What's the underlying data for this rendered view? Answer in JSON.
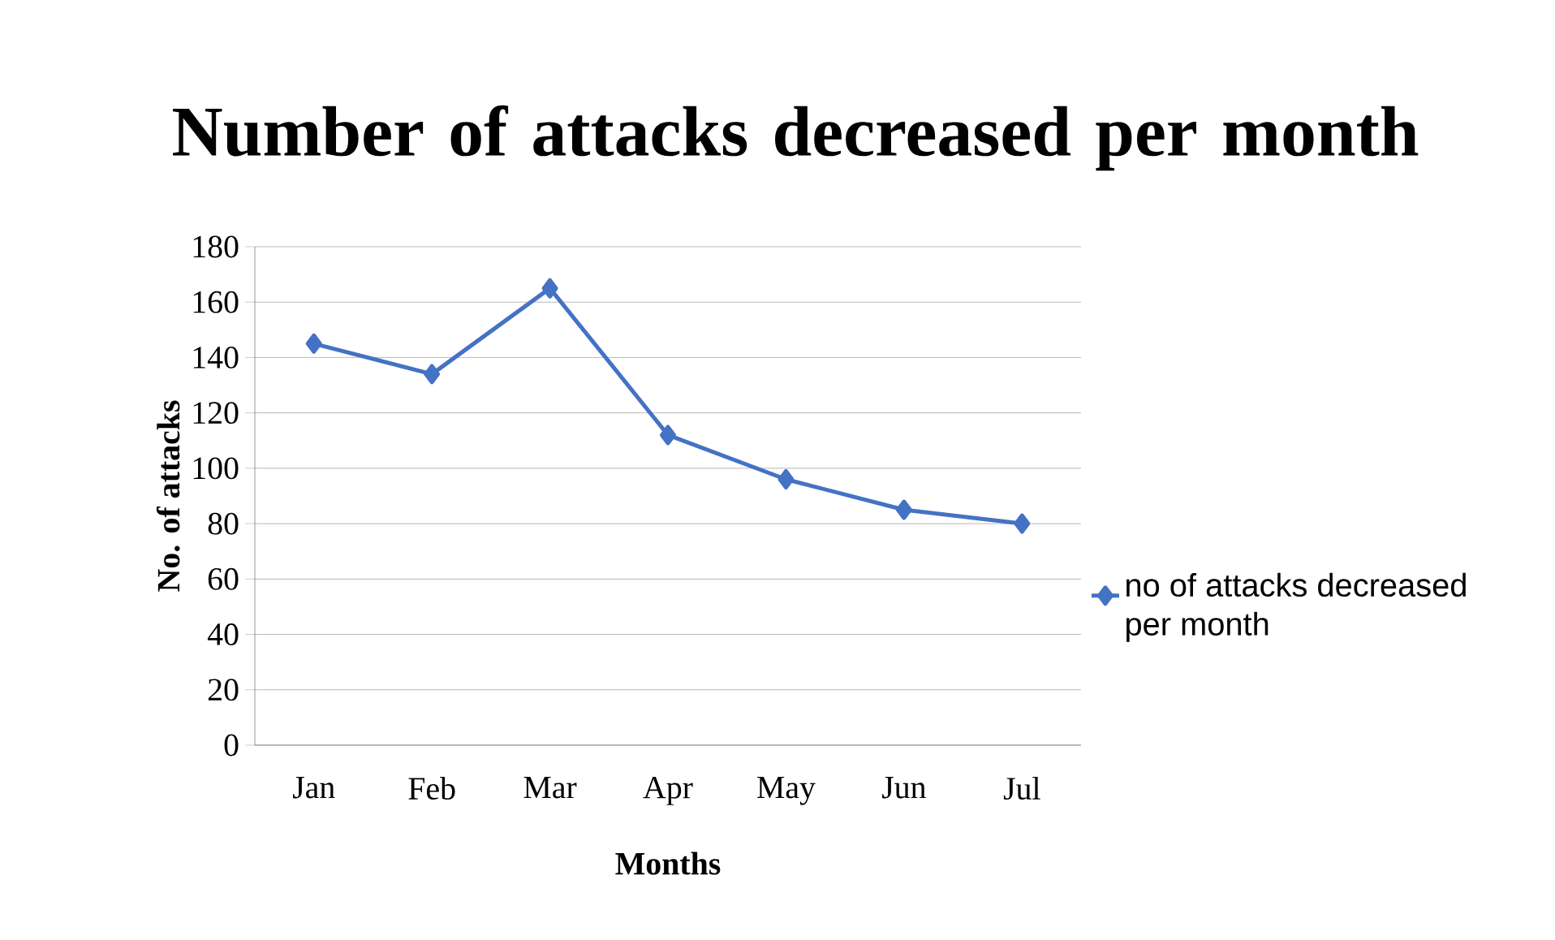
{
  "chart_data": {
    "type": "line",
    "title": "Number of attacks decreased per month",
    "xlabel": "Months",
    "ylabel": "No. of attacks",
    "categories": [
      "Jan",
      "Feb",
      "Mar",
      "Apr",
      "May",
      "Jun",
      "Jul"
    ],
    "series": [
      {
        "name": "no of attacks decreased per month",
        "color": "#4472c4",
        "values": [
          145,
          134,
          165,
          112,
          96,
          85,
          80
        ]
      }
    ],
    "ylim": [
      0,
      180
    ],
    "yticks": [
      0,
      20,
      40,
      60,
      80,
      100,
      120,
      140,
      160,
      180
    ],
    "grid": "y",
    "legend": "right",
    "marker": "diamond",
    "line_style": "solid"
  }
}
